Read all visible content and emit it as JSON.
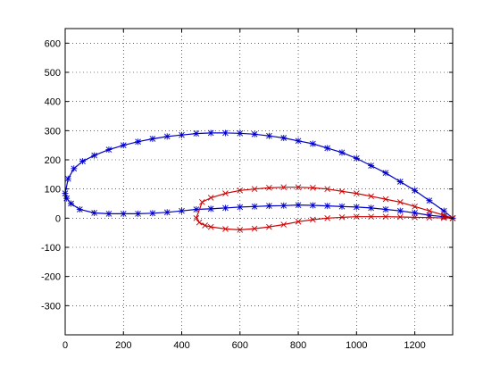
{
  "chart_data": {
    "type": "line",
    "title": "",
    "xlabel": "",
    "ylabel": "",
    "xlim": [
      0,
      1330
    ],
    "ylim": [
      -400,
      650
    ],
    "xticks": [
      0,
      200,
      400,
      600,
      800,
      1000,
      1200
    ],
    "yticks": [
      -300,
      -200,
      -100,
      0,
      100,
      200,
      300,
      400,
      500,
      600
    ],
    "xtick_labels": [
      "0",
      "200",
      "400",
      "600",
      "800",
      "1000",
      "1200"
    ],
    "ytick_labels": [
      "-300",
      "-200",
      "-100",
      "0",
      "100",
      "200",
      "300",
      "400",
      "500",
      "600"
    ],
    "grid": true,
    "legend": "none",
    "series": [
      {
        "color": "#0000cc",
        "marker": "asterisk",
        "x": [
          1330,
          1300,
          1250,
          1200,
          1150,
          1100,
          1050,
          1000,
          950,
          900,
          850,
          800,
          750,
          700,
          650,
          600,
          550,
          500,
          450,
          400,
          350,
          300,
          250,
          200,
          150,
          100,
          60,
          30,
          10,
          0,
          5,
          20,
          50,
          100,
          150,
          200,
          250,
          300,
          350,
          400,
          450,
          500,
          550,
          600,
          650,
          700,
          750,
          800,
          850,
          900,
          950,
          1000,
          1050,
          1100,
          1150,
          1200,
          1250,
          1300,
          1330
        ],
        "y": [
          0,
          25,
          60,
          95,
          125,
          155,
          180,
          205,
          225,
          240,
          255,
          265,
          275,
          282,
          288,
          291,
          292,
          292,
          290,
          285,
          280,
          272,
          262,
          250,
          235,
          215,
          195,
          170,
          135,
          85,
          68,
          50,
          30,
          18,
          15,
          15,
          15,
          17,
          20,
          25,
          30,
          32,
          35,
          38,
          40,
          42,
          43,
          45,
          44,
          42,
          40,
          38,
          35,
          30,
          25,
          18,
          10,
          5,
          0
        ]
      },
      {
        "color": "#cc0000",
        "marker": "x",
        "x": [
          1330,
          1300,
          1250,
          1200,
          1150,
          1100,
          1050,
          1000,
          950,
          900,
          850,
          800,
          750,
          700,
          650,
          600,
          550,
          500,
          470,
          450,
          460,
          480,
          500,
          550,
          600,
          650,
          700,
          750,
          800,
          850,
          900,
          950,
          1000,
          1050,
          1100,
          1150,
          1200,
          1250,
          1300,
          1330
        ],
        "y": [
          0,
          10,
          25,
          40,
          55,
          65,
          75,
          85,
          92,
          100,
          104,
          106,
          106,
          104,
          100,
          95,
          85,
          70,
          55,
          0,
          -15,
          -25,
          -30,
          -37,
          -40,
          -36,
          -30,
          -22,
          -12,
          -5,
          0,
          3,
          5,
          5,
          5,
          4,
          3,
          2,
          1,
          0
        ]
      }
    ]
  }
}
